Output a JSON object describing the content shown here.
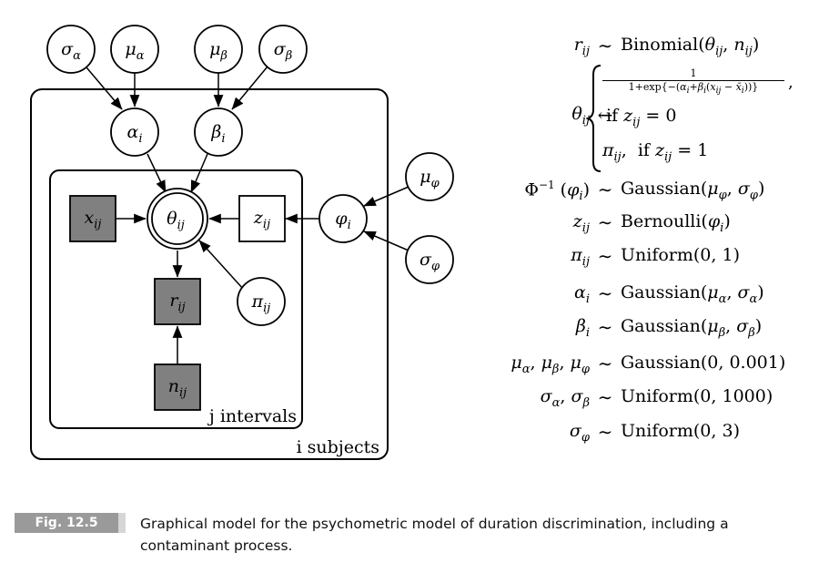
{
  "nodes": {
    "sigma_alpha": {
      "sym": "σ",
      "sub": "α"
    },
    "mu_alpha": {
      "sym": "μ",
      "sub": "α"
    },
    "mu_beta": {
      "sym": "μ",
      "sub": "β"
    },
    "sigma_beta": {
      "sym": "σ",
      "sub": "β"
    },
    "alpha_i": {
      "sym": "α",
      "sub": "i"
    },
    "beta_i": {
      "sym": "β",
      "sub": "i"
    },
    "mu_phi": {
      "sym": "μ",
      "sub": "φ"
    },
    "sigma_phi": {
      "sym": "σ",
      "sub": "φ"
    },
    "phi_i": {
      "sym": "φ",
      "sub": "i"
    },
    "theta_ij": {
      "sym": "θ",
      "sub": "ij"
    },
    "x_ij": {
      "sym": "x",
      "sub": "ij"
    },
    "z_ij": {
      "sym": "z",
      "sub": "ij"
    },
    "r_ij": {
      "sym": "r",
      "sub": "ij"
    },
    "pi_ij": {
      "sym": "π",
      "sub": "ij"
    },
    "n_ij": {
      "sym": "n",
      "sub": "ij"
    }
  },
  "plates": {
    "outer_label": "i subjects",
    "inner_label": "j intervals"
  },
  "equations": [
    {
      "lhs": "r_ij",
      "rel": "~",
      "rhs": "Binomial(θ_ij, n_ij)"
    },
    {
      "lhs": "θ_ij",
      "rel": "←",
      "rhs": "1 / (1+exp{−(α_i+β_i(x_ij − x̄_i))}), if z_ij = 0 ; π_ij, if z_ij = 1"
    },
    {
      "lhs": "Φ⁻¹ (φ_i)",
      "rel": "~",
      "rhs": "Gaussian(μ_φ, σ_φ)"
    },
    {
      "lhs": "z_ij",
      "rel": "~",
      "rhs": "Bernoulli(φ_i)"
    },
    {
      "lhs": "π_ij",
      "rel": "~",
      "rhs": "Uniform(0, 1)"
    },
    {
      "lhs": "α_i",
      "rel": "~",
      "rhs": "Gaussian(μ_α, σ_α)"
    },
    {
      "lhs": "β_i",
      "rel": "~",
      "rhs": "Gaussian(μ_β, σ_β)"
    },
    {
      "lhs": "μ_α, μ_β, μ_φ",
      "rel": "~",
      "rhs": "Gaussian(0, 0.001)"
    },
    {
      "lhs": "σ_α, σ_β",
      "rel": "~",
      "rhs": "Uniform(0, 1000)"
    },
    {
      "lhs": "σ_φ",
      "rel": "~",
      "rhs": "Uniform(0, 3)"
    }
  ],
  "caption": {
    "label": "Fig. 12.5",
    "text": "Graphical model for the psychometric model of duration discrimination, including a contaminant process."
  },
  "colors": {
    "observed_fill": "#808080",
    "latent_fill": "#ffffff",
    "badge_fill": "#9a9a9a"
  }
}
